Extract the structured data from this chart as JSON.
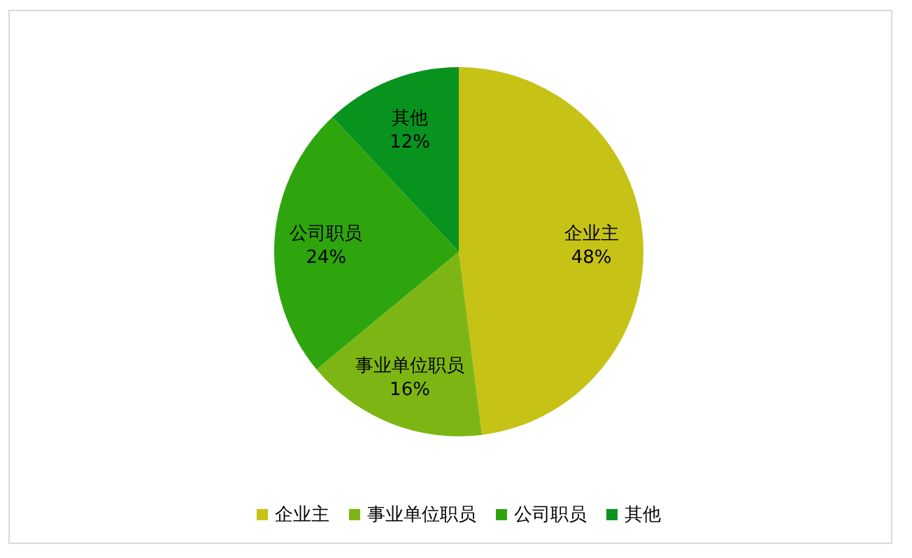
{
  "chart_data": {
    "type": "pie",
    "categories": [
      "企业主",
      "事业单位职员",
      "公司职员",
      "其他"
    ],
    "values": [
      48,
      16,
      24,
      12
    ],
    "value_labels": [
      "48%",
      "16%",
      "24%",
      "12%"
    ],
    "colors": [
      "#c7c216",
      "#7db614",
      "#2ea50d",
      "#08931f"
    ],
    "legend": "bottom"
  }
}
